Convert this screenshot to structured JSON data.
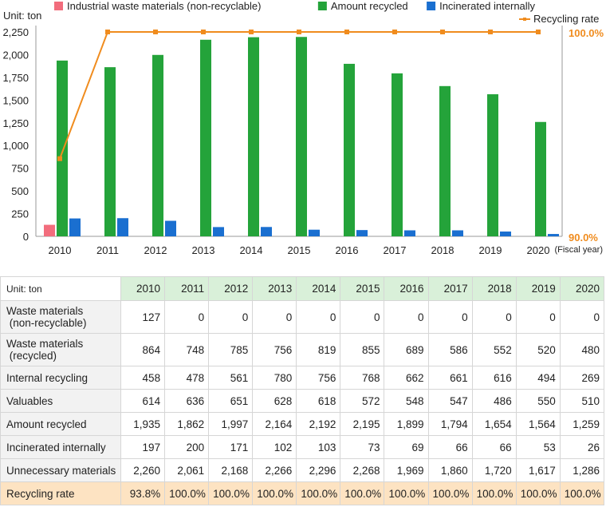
{
  "chart_data": {
    "type": "bar",
    "unit_label": "Unit: ton",
    "categories": [
      "2010",
      "2011",
      "2012",
      "2013",
      "2014",
      "2015",
      "2016",
      "2017",
      "2018",
      "2019",
      "2020"
    ],
    "x_axis_note": "(Fiscal year)",
    "series": [
      {
        "name": "Industrial waste materials (non-recyclable)",
        "color": "#f26d7d",
        "values": [
          127,
          0,
          0,
          0,
          0,
          0,
          0,
          0,
          0,
          0,
          0
        ]
      },
      {
        "name": "Amount recycled",
        "color": "#24a33a",
        "values": [
          1935,
          1862,
          1997,
          2164,
          2192,
          2195,
          1899,
          1794,
          1654,
          1564,
          1259
        ]
      },
      {
        "name": "Incinerated internally",
        "color": "#1a6fd0",
        "values": [
          197,
          200,
          171,
          102,
          103,
          73,
          69,
          66,
          66,
          53,
          26
        ]
      }
    ],
    "line_series": {
      "name": "Recycling rate",
      "color": "#f08c1e",
      "axis": "right",
      "values": [
        93.8,
        100,
        100,
        100,
        100,
        100,
        100,
        100,
        100,
        100,
        100
      ]
    },
    "ylim": [
      0,
      2250
    ],
    "y_ticks": [
      "0",
      "250",
      "500",
      "750",
      "1,000",
      "1,250",
      "1,500",
      "1,750",
      "2,000",
      "2,250"
    ],
    "y_tick_values": [
      0,
      250,
      500,
      750,
      1000,
      1250,
      1500,
      1750,
      2000,
      2250
    ],
    "y2lim": [
      90,
      100
    ],
    "y2_ticks": [
      "90.0%",
      "100.0%"
    ],
    "y2_tick_values": [
      90,
      100
    ],
    "legend_position": "top"
  },
  "table": {
    "unit_label": "Unit: ton",
    "years": [
      "2010",
      "2011",
      "2012",
      "2013",
      "2014",
      "2015",
      "2016",
      "2017",
      "2018",
      "2019",
      "2020"
    ],
    "rows": [
      {
        "label": "Waste materials\n(non-recyclable)",
        "tall": true,
        "values": [
          "127",
          "0",
          "0",
          "0",
          "0",
          "0",
          "0",
          "0",
          "0",
          "0",
          "0"
        ]
      },
      {
        "label": "Waste materials\n(recycled)",
        "tall": true,
        "values": [
          "864",
          "748",
          "785",
          "756",
          "819",
          "855",
          "689",
          "586",
          "552",
          "520",
          "480"
        ]
      },
      {
        "label": "Internal recycling",
        "values": [
          "458",
          "478",
          "561",
          "780",
          "756",
          "768",
          "662",
          "661",
          "616",
          "494",
          "269"
        ]
      },
      {
        "label": "Valuables",
        "values": [
          "614",
          "636",
          "651",
          "628",
          "618",
          "572",
          "548",
          "547",
          "486",
          "550",
          "510"
        ]
      },
      {
        "label": "Amount recycled",
        "values": [
          "1,935",
          "1,862",
          "1,997",
          "2,164",
          "2,192",
          "2,195",
          "1,899",
          "1,794",
          "1,654",
          "1,564",
          "1,259"
        ]
      },
      {
        "label": "Incinerated internally",
        "values": [
          "197",
          "200",
          "171",
          "102",
          "103",
          "73",
          "69",
          "66",
          "66",
          "53",
          "26"
        ]
      },
      {
        "label": "Unnecessary materials",
        "values": [
          "2,260",
          "2,061",
          "2,168",
          "2,266",
          "2,296",
          "2,268",
          "1,969",
          "1,860",
          "1,720",
          "1,617",
          "1,286"
        ]
      },
      {
        "label": "Recycling rate",
        "rate": true,
        "values": [
          "93.8%",
          "100.0%",
          "100.0%",
          "100.0%",
          "100.0%",
          "100.0%",
          "100.0%",
          "100.0%",
          "100.0%",
          "100.0%",
          "100.0%"
        ]
      }
    ]
  }
}
